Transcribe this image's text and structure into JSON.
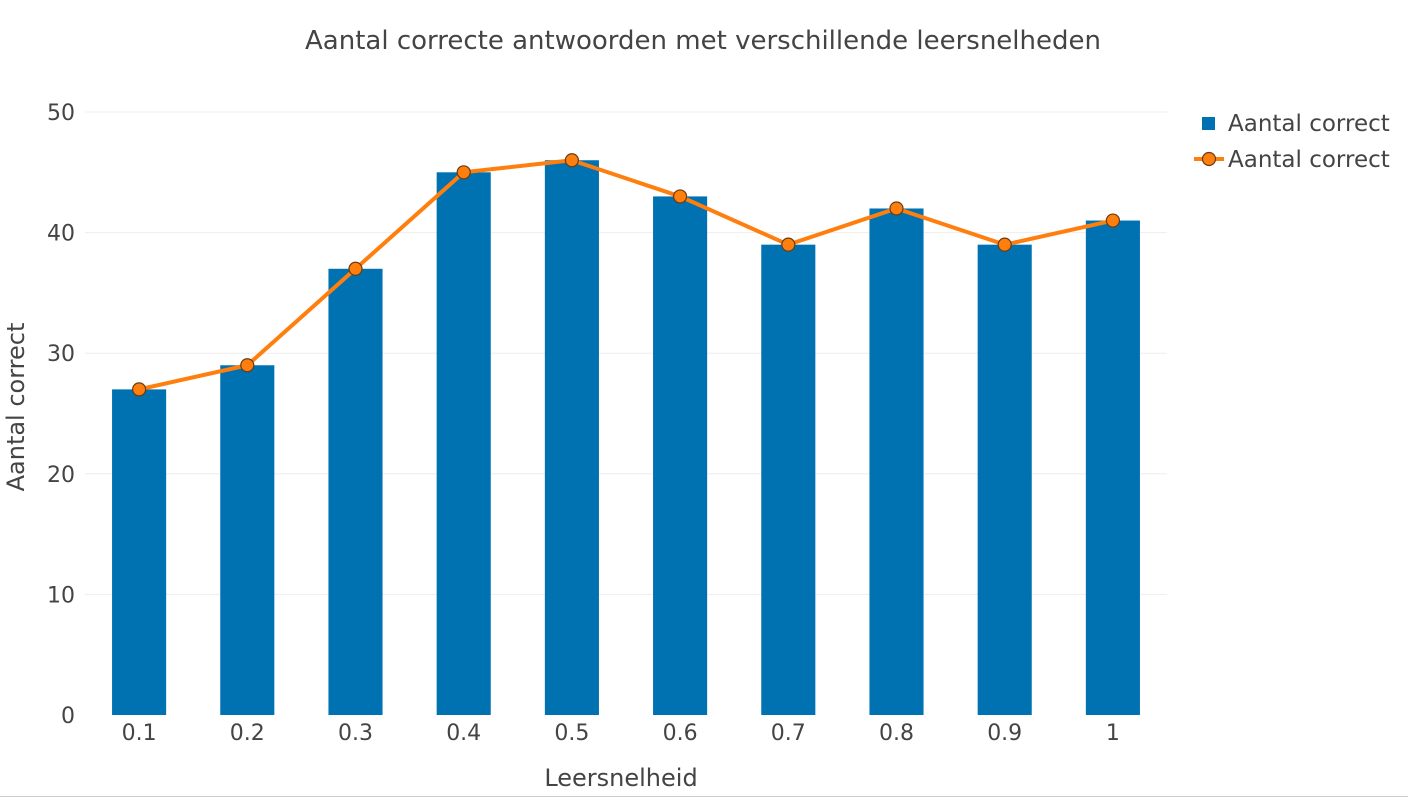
{
  "chart_data": {
    "type": "bar",
    "title": "Aantal correcte antwoorden met verschillende leersnelheden",
    "xlabel": "Leersnelheid",
    "ylabel": "Aantal correct",
    "categories": [
      "0.1",
      "0.2",
      "0.3",
      "0.4",
      "0.5",
      "0.6",
      "0.7",
      "0.8",
      "0.9",
      "1"
    ],
    "ylim": [
      0,
      50
    ],
    "yticks": [
      "0",
      "10",
      "20",
      "30",
      "40",
      "50"
    ],
    "grid": true,
    "legend_position": "top-right",
    "series": [
      {
        "name": "Aantal correct",
        "type": "bar",
        "color": "#0072b2",
        "values": [
          27,
          29,
          37,
          45,
          46,
          43,
          39,
          42,
          39,
          41
        ]
      },
      {
        "name": "Aantal correct",
        "type": "line",
        "color": "#ff7f0e",
        "marker_edge": "#6b3a10",
        "values": [
          27,
          29,
          37,
          45,
          46,
          43,
          39,
          42,
          39,
          41
        ]
      }
    ]
  }
}
